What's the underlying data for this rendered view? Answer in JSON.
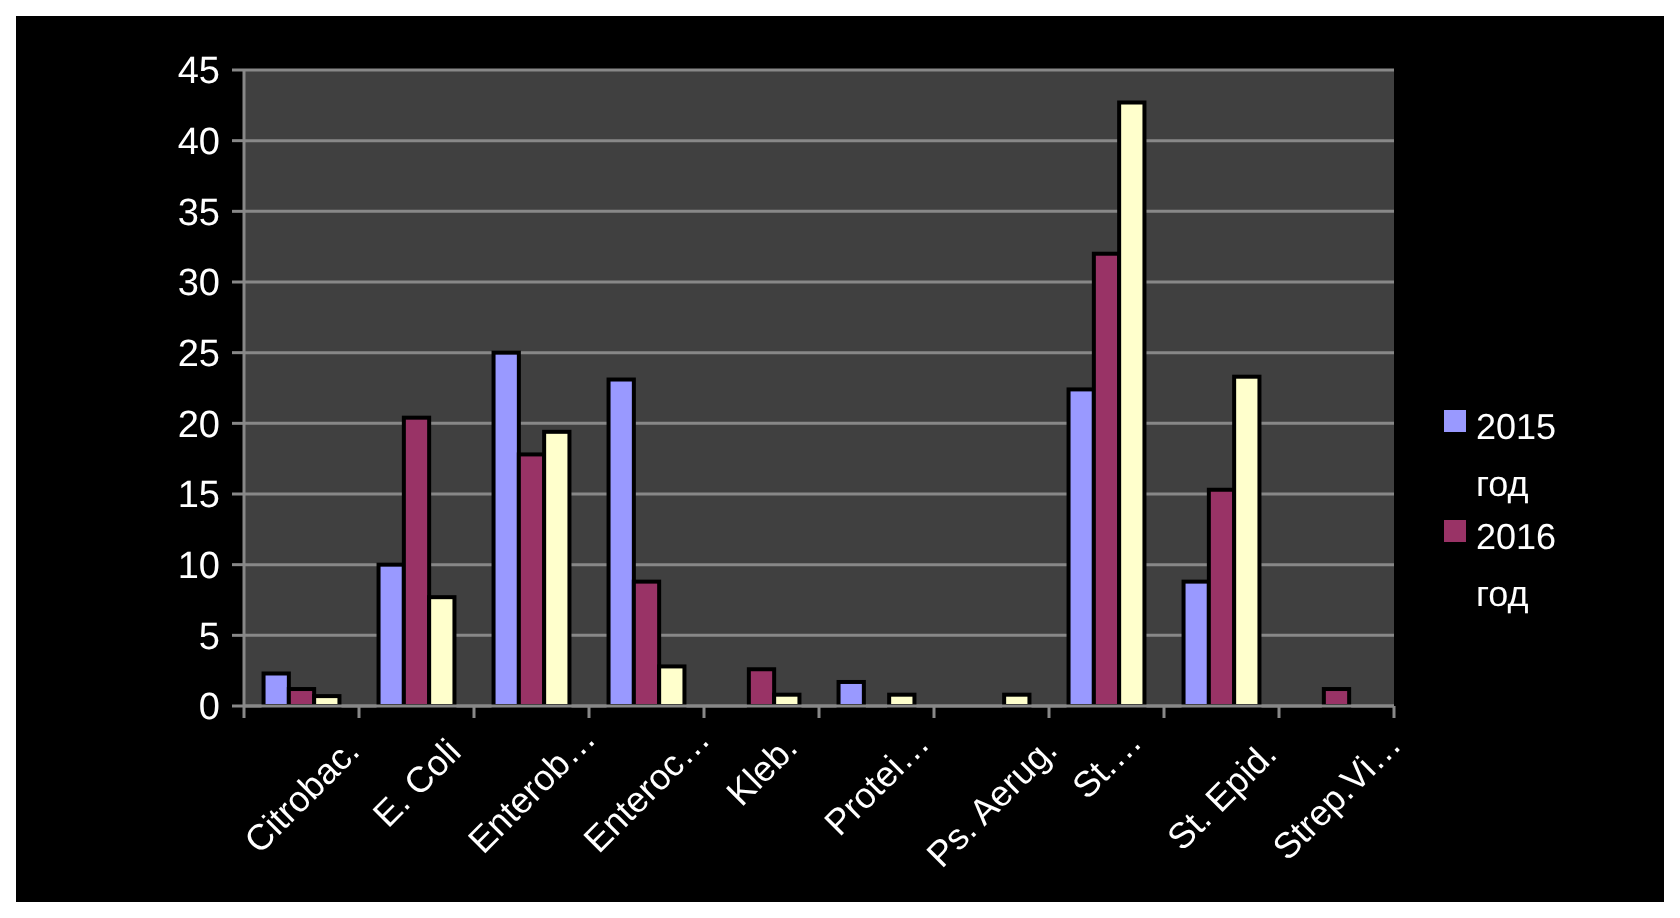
{
  "chart_data": {
    "type": "bar",
    "categories": [
      "Citrobac.",
      "E. Coli",
      "Enterob…",
      "Enteroc…",
      "Kleb.",
      "Protei…",
      "Ps. Aerug.",
      "St.…",
      "St. Epid.",
      "Strep.Vi…"
    ],
    "series": [
      {
        "name": "2015 год",
        "color": "#9999ff",
        "values": [
          2.3,
          10,
          25,
          23.1,
          null,
          1.7,
          null,
          22.4,
          8.8,
          null
        ]
      },
      {
        "name": "2016 год",
        "color": "#993366",
        "values": [
          1.2,
          20.4,
          17.8,
          8.8,
          2.6,
          null,
          null,
          32,
          15.3,
          1.2
        ]
      },
      {
        "color": "#ffffcc",
        "values": [
          0.7,
          7.7,
          19.4,
          2.8,
          0.8,
          0.8,
          0.8,
          42.7,
          23.3,
          null
        ]
      }
    ],
    "ylim": [
      0,
      45
    ],
    "yticks": [
      0,
      5,
      10,
      15,
      20,
      25,
      30,
      35,
      40,
      45
    ],
    "grid": "y",
    "legend": "right"
  }
}
